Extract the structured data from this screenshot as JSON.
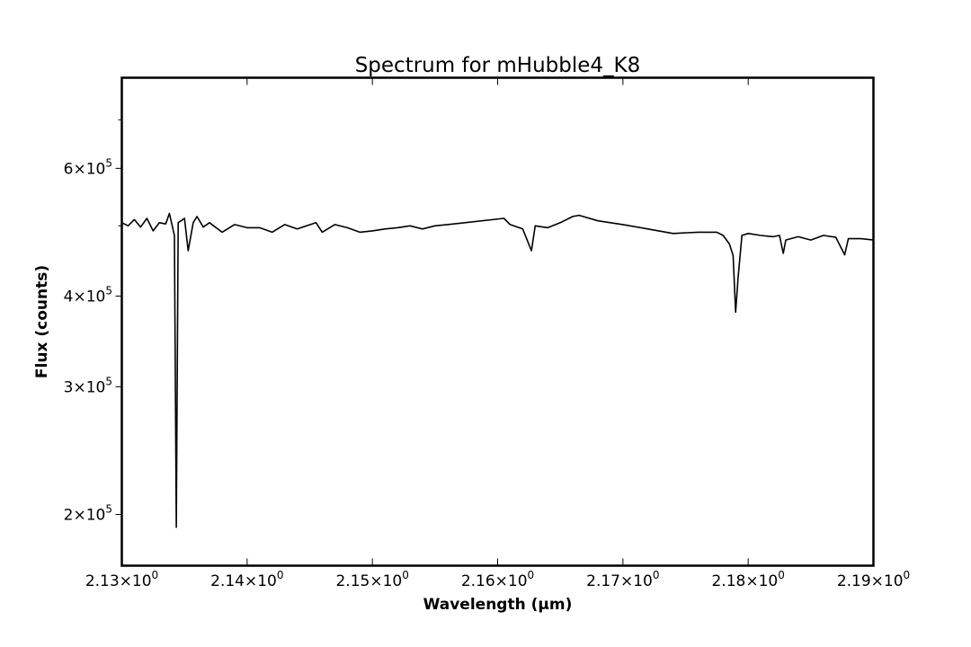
{
  "chart_data": {
    "type": "line",
    "title": "Spectrum for mHubble4_K8",
    "xlabel": "Wavelength (μm)",
    "ylabel": "Flux (counts)",
    "xlim": [
      2.13,
      2.19
    ],
    "ylim": [
      170000,
      800000
    ],
    "yscale": "log",
    "grid": false,
    "legend": "none",
    "line_color": "#000000",
    "x_ticks": [
      {
        "value": 2.13,
        "mantissa": "2.13",
        "base": "10",
        "exp": "0"
      },
      {
        "value": 2.14,
        "mantissa": "2.14",
        "base": "10",
        "exp": "0"
      },
      {
        "value": 2.15,
        "mantissa": "2.15",
        "base": "10",
        "exp": "0"
      },
      {
        "value": 2.16,
        "mantissa": "2.16",
        "base": "10",
        "exp": "0"
      },
      {
        "value": 2.17,
        "mantissa": "2.17",
        "base": "10",
        "exp": "0"
      },
      {
        "value": 2.18,
        "mantissa": "2.18",
        "base": "10",
        "exp": "0"
      },
      {
        "value": 2.19,
        "mantissa": "2.19",
        "base": "10",
        "exp": "0"
      }
    ],
    "y_ticks_major": [
      {
        "value": 200000,
        "mantissa": "2",
        "base": "10",
        "exp": "5"
      },
      {
        "value": 300000,
        "mantissa": "3",
        "base": "10",
        "exp": "5"
      },
      {
        "value": 400000,
        "mantissa": "4",
        "base": "10",
        "exp": "5"
      },
      {
        "value": 600000,
        "mantissa": "6",
        "base": "10",
        "exp": "5"
      }
    ],
    "y_ticks_minor": [
      500000,
      700000
    ],
    "series": [
      {
        "color": "#000000",
        "x": [
          2.13,
          2.1305,
          2.131,
          2.1315,
          2.132,
          2.1325,
          2.133,
          2.1335,
          2.1338,
          2.1342,
          2.13435,
          2.1345,
          2.135,
          2.1353,
          2.1357,
          2.136,
          2.1365,
          2.137,
          2.138,
          2.139,
          2.14,
          2.141,
          2.142,
          2.143,
          2.144,
          2.1455,
          2.146,
          2.147,
          2.148,
          2.149,
          2.15,
          2.151,
          2.152,
          2.153,
          2.154,
          2.155,
          2.156,
          2.1605,
          2.161,
          2.162,
          2.1627,
          2.163,
          2.164,
          2.165,
          2.166,
          2.1665,
          2.168,
          2.17,
          2.172,
          2.174,
          2.176,
          2.1775,
          2.178,
          2.1785,
          2.1788,
          2.179,
          2.1792,
          2.1795,
          2.18,
          2.181,
          2.182,
          2.1825,
          2.1828,
          2.183,
          2.184,
          2.185,
          2.186,
          2.187,
          2.1877,
          2.188,
          2.189,
          2.19
        ],
        "y": [
          505000,
          500000,
          510000,
          498000,
          512000,
          492000,
          505000,
          503000,
          520000,
          485000,
          192000,
          505000,
          512000,
          462000,
          505000,
          515000,
          498000,
          505000,
          490000,
          502000,
          497000,
          497000,
          490000,
          502000,
          495000,
          505000,
          490000,
          502000,
          497000,
          490000,
          492000,
          495000,
          497000,
          500000,
          495000,
          500000,
          502000,
          512000,
          502000,
          495000,
          462000,
          500000,
          497000,
          505000,
          515000,
          517000,
          508000,
          502000,
          495000,
          488000,
          490000,
          490000,
          485000,
          472000,
          455000,
          380000,
          425000,
          485000,
          488000,
          485000,
          483000,
          485000,
          458000,
          478000,
          483000,
          478000,
          485000,
          482000,
          456000,
          480000,
          480000,
          478000
        ]
      }
    ]
  }
}
